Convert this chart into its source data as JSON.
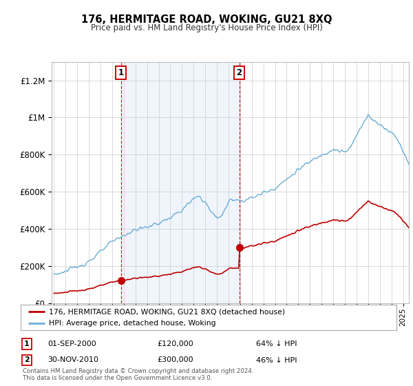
{
  "title": "176, HERMITAGE ROAD, WOKING, GU21 8XQ",
  "subtitle": "Price paid vs. HM Land Registry's House Price Index (HPI)",
  "legend_line1": "176, HERMITAGE ROAD, WOKING, GU21 8XQ (detached house)",
  "legend_line2": "HPI: Average price, detached house, Woking",
  "sale1_date": "01-SEP-2000",
  "sale1_price": "£120,000",
  "sale1_hpi": "64% ↓ HPI",
  "sale2_date": "30-NOV-2010",
  "sale2_price": "£300,000",
  "sale2_hpi": "46% ↓ HPI",
  "footer": "Contains HM Land Registry data © Crown copyright and database right 2024.\nThis data is licensed under the Open Government Licence v3.0.",
  "hpi_color": "#6aaed6",
  "price_color": "#c00000",
  "shade_color": "#ddeeff",
  "background_color": "#ffffff",
  "grid_color": "#cccccc",
  "ylim": [
    0,
    1300000
  ],
  "yticks": [
    0,
    200000,
    400000,
    600000,
    800000,
    1000000,
    1200000
  ],
  "xlim_start": 1994.8,
  "xlim_end": 2025.5,
  "sale1_x": 2000.75,
  "sale1_y": 120000,
  "sale2_x": 2010.92,
  "sale2_y": 300000
}
